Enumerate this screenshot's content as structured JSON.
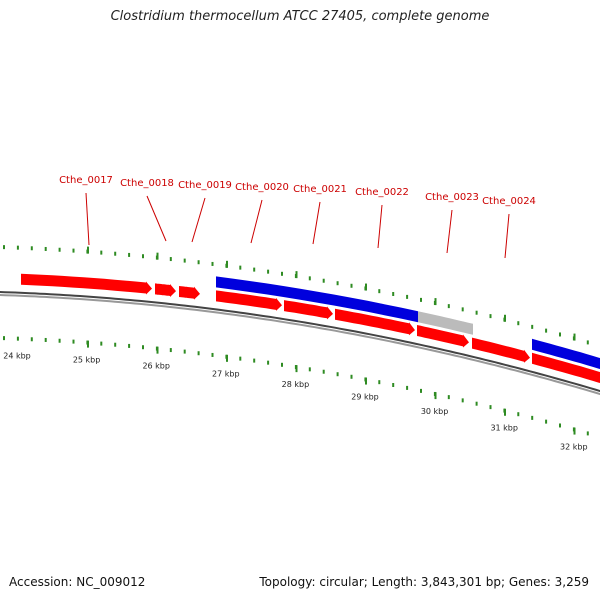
{
  "title": "Clostridium thermocellum ATCC 27405, complete genome",
  "footer": {
    "accession": "Accession: NC_009012",
    "topology": "Topology: circular; Length: 3,843,301 bp; Genes: 3,259"
  },
  "colors": {
    "gene_forward": "#ff0000",
    "gene_cds_block": "#0000dd",
    "gene_gray": "#bbbbbb",
    "tick": "#2e8b22",
    "label": "#cc0000",
    "backbone": "#666666"
  },
  "scale_kbp": [
    "24 kbp",
    "25 kbp",
    "26 kbp",
    "27 kbp",
    "28 kbp",
    "29 kbp",
    "30 kbp",
    "31 kbp",
    "32 kbp"
  ],
  "gene_labels": [
    "Cthe_0017",
    "Cthe_0018",
    "Cthe_0019",
    "Cthe_0020",
    "Cthe_0021",
    "Cthe_0022",
    "Cthe_0023",
    "Cthe_0024"
  ]
}
